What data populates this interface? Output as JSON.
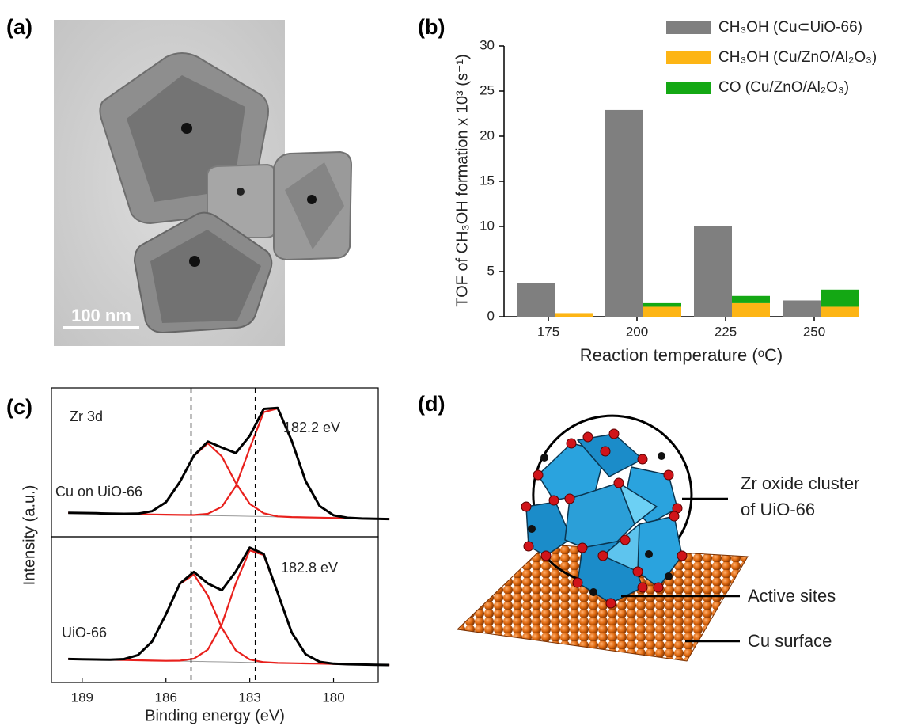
{
  "image": {
    "label": "(a)",
    "scale_bar": "100 nm"
  },
  "diagram": {
    "label": "(d)",
    "callouts": [
      [
        "Zr oxide cluster",
        "of UiO-66"
      ],
      [
        "Active sites"
      ],
      [
        "Cu surface"
      ]
    ]
  },
  "chart_data": [
    {
      "type": "bar",
      "label": "(b)",
      "ylabel": "TOF of CH₃OH formation x 10³ (s⁻¹)",
      "xlabel": "Reaction temperature (ᵒC)",
      "categories": [
        "175",
        "200",
        "225",
        "250"
      ],
      "series": [
        {
          "name": "CH₃OH (Cu⊂UiO-66)",
          "color": "#7f7f7f",
          "values": [
            3.7,
            22.9,
            10,
            1.8
          ]
        },
        {
          "name": "CH₃OH (Cu/ZnO/Al₂O₃)",
          "color": "#fdb515",
          "values": [
            0.4,
            1.1,
            1.5,
            1.1
          ]
        },
        {
          "name": "CO (Cu/ZnO/Al₂O₃)",
          "color": "#14a814",
          "values": [
            0,
            0.4,
            0.8,
            1.9
          ]
        }
      ],
      "ylim": [
        0,
        30
      ],
      "yticks": [
        0,
        5,
        10,
        15,
        20,
        25,
        30
      ]
    },
    {
      "type": "line",
      "label": "(c)",
      "xlabel": "Binding energy (eV)",
      "ylabel": "Intensity (a.u.)",
      "xlim": [
        190.1,
        178.4
      ],
      "xticks": [
        189,
        186,
        183,
        180
      ],
      "vlines": [
        185.1,
        182.8
      ],
      "x": [
        189.5,
        189,
        188.5,
        188,
        187.5,
        187,
        186.5,
        186,
        185.5,
        185,
        184.5,
        184,
        183.5,
        183,
        182.5,
        182,
        181.5,
        181,
        180.5,
        180,
        179.5,
        179,
        178.5,
        178
      ],
      "panels": [
        {
          "ylim": [
            -12,
            100
          ],
          "annotations": [
            "Zr 3d",
            "Cu on UiO-66",
            "182.2 eV"
          ],
          "series": [
            {
              "color": "#999999",
              "values": [
                6,
                5.8,
                5.6,
                5.3,
                5.1,
                4.9,
                4.7,
                4.5,
                4.3,
                4,
                3.8,
                3.6,
                3.4,
                3.2,
                3,
                2.7,
                2.5,
                2.3,
                2.1,
                1.9,
                1.7,
                1.4,
                1.2,
                1
              ]
            },
            {
              "color": "#e8201c",
              "values": [
                6,
                5.8,
                5.6,
                5.3,
                5.2,
                5.3,
                7.3,
                14.5,
                30.9,
                51.7,
                61.8,
                51.3,
                30,
                13.2,
                5.6,
                3.1,
                2.6,
                2.3,
                2.1,
                1.9,
                1.7,
                1.4,
                1.2,
                1
              ]
            },
            {
              "color": "#e8201c",
              "values": [
                6,
                5.8,
                5.6,
                5.3,
                5.1,
                4.9,
                4.7,
                4.5,
                4.3,
                4.2,
                5.2,
                10.8,
                27.4,
                57.8,
                86.9,
                89.9,
                63.9,
                31.5,
                11.5,
                4,
                2,
                1.4,
                1.2,
                1
              ]
            },
            {
              "color": "#000000",
              "values": [
                6,
                5.8,
                5.6,
                5.3,
                5.2,
                5.3,
                7.3,
                14.5,
                30.9,
                51.9,
                63.2,
                58.5,
                54,
                67.8,
                89.5,
                90.3,
                64,
                31.5,
                11.5,
                4,
                2,
                1.4,
                1.2,
                1
              ]
            }
          ]
        },
        {
          "ylim": [
            -12,
            100
          ],
          "annotations": [
            "182.8 eV",
            "UiO-66"
          ],
          "series": [
            {
              "color": "#999999",
              "values": [
                6,
                5.8,
                5.6,
                5.3,
                5.1,
                4.9,
                4.7,
                4.5,
                4.3,
                4,
                3.8,
                3.6,
                3.4,
                3.2,
                3,
                2.7,
                2.5,
                2.3,
                2.1,
                1.9,
                1.7,
                1.4,
                1.2,
                1
              ]
            },
            {
              "color": "#e8201c",
              "values": [
                6,
                5.8,
                5.6,
                5.4,
                5.9,
                9.2,
                20.3,
                42.7,
                67.8,
                75.4,
                58.2,
                31.6,
                13.1,
                5.5,
                3.4,
                2.7,
                2.5,
                2.3,
                2.1,
                1.9,
                1.7,
                1.4,
                1.2,
                1
              ]
            },
            {
              "color": "#e8201c",
              "values": [
                6,
                5.8,
                5.6,
                5.3,
                5.1,
                4.9,
                4.7,
                4.5,
                4.6,
                6.2,
                13.7,
                34.5,
                68.2,
                95.3,
                91.5,
                60.4,
                27.9,
                9.9,
                3.6,
                2.1,
                1.7,
                1.4,
                1.2,
                1
              ]
            },
            {
              "color": "#000000",
              "values": [
                6,
                5.8,
                5.6,
                5.4,
                5.9,
                9.2,
                20.3,
                42.7,
                68.1,
                77.6,
                68.1,
                62.5,
                77.9,
                97.6,
                92.3,
                60.4,
                27.9,
                9.9,
                3.6,
                2.1,
                1.7,
                1.4,
                1.2,
                1
              ]
            }
          ]
        }
      ]
    }
  ]
}
